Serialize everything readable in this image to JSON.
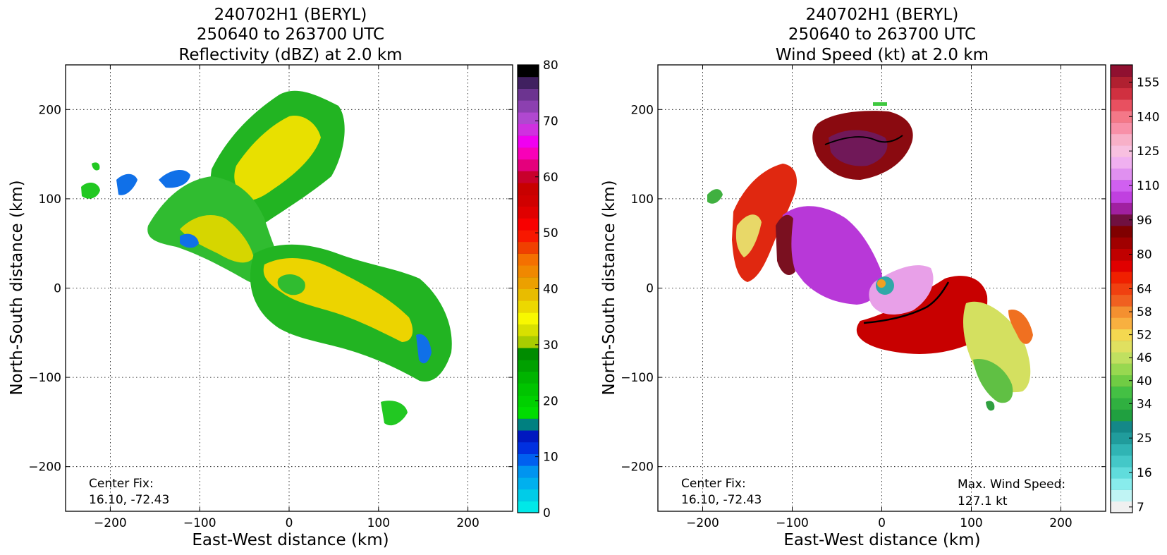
{
  "chart_data": [
    {
      "type": "heatmap",
      "title": [
        "240702H1 (BERYL)",
        "250640 to 263700 UTC",
        "Reflectivity (dBZ) at 2.0 km"
      ],
      "xlabel": "East-West distance (km)",
      "ylabel": "North-South distance (km)",
      "xlim": [
        -250,
        250
      ],
      "ylim": [
        -250,
        250
      ],
      "xticks": [
        -200,
        -100,
        0,
        100,
        200
      ],
      "yticks": [
        -200,
        -100,
        0,
        100,
        200
      ],
      "xtick_labels": [
        "−200",
        "−100",
        "0",
        "100",
        "200"
      ],
      "ytick_labels": [
        "−200",
        "−100",
        "0",
        "100",
        "200"
      ],
      "grid": true,
      "annotations": [
        {
          "position": "bottom-left",
          "lines": [
            "Center Fix:",
            "16.10, -72.43"
          ]
        }
      ],
      "colorbar": {
        "range": [
          0,
          80
        ],
        "tick_values": [
          0,
          10,
          20,
          30,
          40,
          50,
          60,
          70,
          80
        ],
        "tick_labels": [
          "0",
          "10",
          "20",
          "30",
          "40",
          "50",
          "60",
          "70",
          "80"
        ],
        "colors": [
          "#00e8e8",
          "#00cce8",
          "#00b0ee",
          "#0094f0",
          "#0060f0",
          "#0030e0",
          "#0018c0",
          "#008080",
          "#00dc00",
          "#00d000",
          "#00c400",
          "#00b400",
          "#00a000",
          "#008c00",
          "#a8cc00",
          "#d8e000",
          "#f8f800",
          "#ecd800",
          "#e8bc00",
          "#eca000",
          "#f08800",
          "#f47000",
          "#f04000",
          "#f81800",
          "#f80000",
          "#e00000",
          "#d00000",
          "#c80000",
          "#c8002c",
          "#e4007c",
          "#f800b8",
          "#f000f0",
          "#d030e0",
          "#b048d0",
          "#8c40b0",
          "#6c3490",
          "#402060",
          "#000000"
        ]
      }
    },
    {
      "type": "heatmap",
      "title": [
        "240702H1 (BERYL)",
        "250640 to 263700 UTC",
        "Wind Speed (kt) at 2.0 km"
      ],
      "xlabel": "East-West distance (km)",
      "ylabel": "North-South distance (km)",
      "xlim": [
        -250,
        250
      ],
      "ylim": [
        -250,
        250
      ],
      "xticks": [
        -200,
        -100,
        0,
        100,
        200
      ],
      "yticks": [
        -200,
        -100,
        0,
        100,
        200
      ],
      "xtick_labels": [
        "−200",
        "−100",
        "0",
        "100",
        "200"
      ],
      "ytick_labels": [
        "−200",
        "−100",
        "0",
        "100",
        "200"
      ],
      "grid": true,
      "annotations": [
        {
          "position": "bottom-left",
          "lines": [
            "Center Fix:",
            "16.10, -72.43"
          ]
        },
        {
          "position": "bottom-right",
          "lines": [
            "Max. Wind Speed:",
            "127.1 kt"
          ]
        }
      ],
      "max_wind_speed_kt": 127.1,
      "colorbar": {
        "tick_labels": [
          "7",
          "16",
          "25",
          "34",
          "40",
          "46",
          "52",
          "58",
          "64",
          "80",
          "96",
          "110",
          "125",
          "140",
          "155"
        ],
        "tick_index": [
          0,
          3,
          6,
          9,
          11,
          13,
          15,
          17,
          19,
          22,
          25,
          28,
          31,
          34,
          37
        ],
        "colors": [
          "#f0f0f0",
          "#c0f4f4",
          "#88ecec",
          "#60dcdc",
          "#44c8c8",
          "#30b4b4",
          "#209c9c",
          "#148888",
          "#20a040",
          "#30b040",
          "#44c044",
          "#70cc44",
          "#98d850",
          "#c0e060",
          "#e0e060",
          "#f4d850",
          "#f8b040",
          "#f49030",
          "#f06020",
          "#f04010",
          "#f02000",
          "#e00000",
          "#c00000",
          "#a00000",
          "#800000",
          "#701040",
          "#a020a0",
          "#c040e0",
          "#d060f0",
          "#e090f0",
          "#f0b0f0",
          "#f8c0e0",
          "#f8b0c8",
          "#f890a8",
          "#f47888",
          "#e85060",
          "#d03040",
          "#b02030",
          "#901030"
        ]
      }
    }
  ]
}
